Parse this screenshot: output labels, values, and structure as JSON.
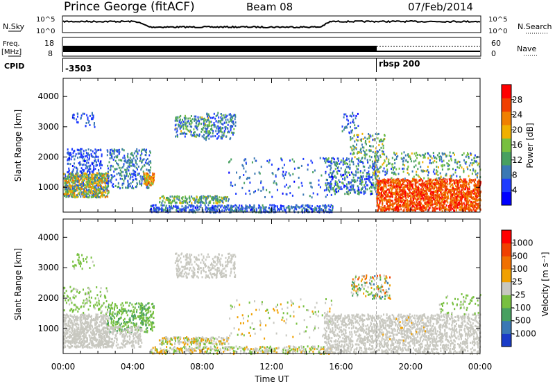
{
  "header": {
    "site_title": "Prince George (fitACF)",
    "beam": "Beam 08",
    "date": "07/Feb/2014"
  },
  "strips": {
    "nsky_label": "N.Sky",
    "nsky_ticks": [
      "10^5",
      "10^0"
    ],
    "nsearch_label": "N.Search",
    "nsearch_ticks": [
      "10^5",
      "10^0"
    ],
    "freq_label": "Freq.",
    "freq_unit": "[MHz]",
    "freq_ticks": [
      "18",
      "8"
    ],
    "nave_label": "Nave",
    "nave_ticks": [
      "60",
      "0"
    ],
    "cpid_label": "CPID",
    "cpid_segments": [
      {
        "start_hour": 0.0,
        "end_hour": 18.0,
        "label": "-3503"
      },
      {
        "start_hour": 18.0,
        "end_hour": 24.0,
        "label": "rbsp 200"
      }
    ]
  },
  "chart_data": [
    {
      "type": "heatmap",
      "name": "power-panel",
      "ylabel": "Slant Range [km]",
      "yticks": [
        1000,
        2000,
        3000,
        4000
      ],
      "ylim": [
        180,
        4600
      ],
      "xlim": [
        0,
        24
      ],
      "colorbar": {
        "label": "Power [dB]",
        "ticks": [
          "28",
          "24",
          "20",
          "16",
          "12",
          "8",
          "4"
        ],
        "colors": [
          "#0000ff",
          "#1e3cff",
          "#3a78b4",
          "#48a060",
          "#78c040",
          "#f0b000",
          "#f08000",
          "#f04000",
          "#ff0000"
        ]
      }
    },
    {
      "type": "heatmap",
      "name": "velocity-panel",
      "ylabel": "Slant Range [km]",
      "yticks": [
        1000,
        2000,
        3000,
        4000
      ],
      "ylim": [
        180,
        4600
      ],
      "xlim": [
        0,
        24
      ],
      "xlabel": "Time UT",
      "xticks": [
        "00:00",
        "04:00",
        "08:00",
        "12:00",
        "16:00",
        "20:00",
        "00:00"
      ],
      "colorbar": {
        "label": "Velocity [m s⁻¹]",
        "ticks": [
          "1000",
          "500",
          "100",
          "25",
          "-25",
          "-100",
          "-500",
          "-1000"
        ],
        "colors": [
          "#1a3cc8",
          "#3a78b4",
          "#48a060",
          "#78c040",
          "#c8c8c0",
          "#f0a000",
          "#f07000",
          "#f04000",
          "#ff0000"
        ]
      }
    }
  ]
}
